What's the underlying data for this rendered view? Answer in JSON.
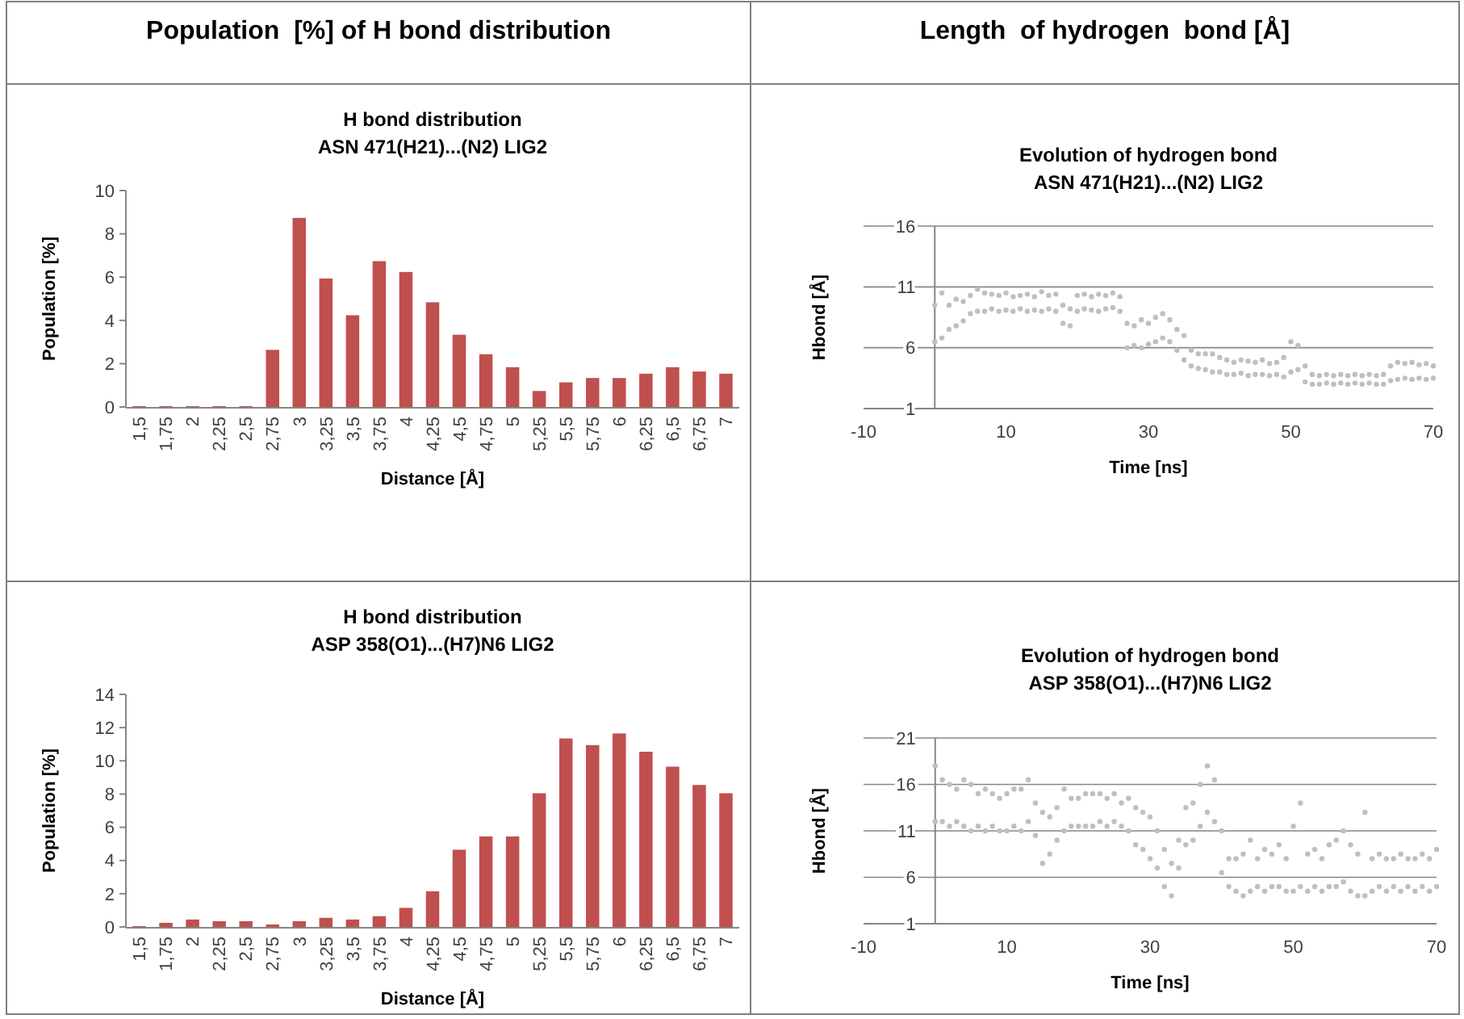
{
  "chart_data": [
    {
      "type": "bar",
      "title": "H bond distribution",
      "subtitle": "ASN 471(H21)...(N2) LIG2",
      "xlabel": "Distance [Å]",
      "ylabel": "Population [%]",
      "annotations": [
        "Population  [%] of H bond distribution"
      ],
      "categories": [
        "1,5",
        "1,75",
        "2",
        "2,25",
        "2,5",
        "2,75",
        "3",
        "3,25",
        "3,5",
        "3,75",
        "4",
        "4,25",
        "4,5",
        "4,75",
        "5",
        "5,25",
        "5,5",
        "5,75",
        "6",
        "6,25",
        "6,5",
        "6,75",
        "7"
      ],
      "values": [
        0,
        0,
        0,
        0,
        0,
        2.6,
        8.7,
        5.9,
        4.2,
        6.7,
        6.2,
        4.8,
        3.3,
        2.4,
        1.8,
        0.7,
        1.1,
        1.3,
        1.3,
        1.5,
        1.8,
        1.6,
        1.5
      ],
      "color": "#c0504d",
      "ylim": [
        0,
        10
      ],
      "yticks": [
        0,
        2,
        4,
        6,
        8,
        10
      ],
      "grid": false
    },
    {
      "type": "scatter",
      "title": "Evolution of hydrogen bond",
      "subtitle": "ASN 471(H21)...(N2) LIG2",
      "xlabel": "Time [ns]",
      "ylabel": "Hbond [Å]",
      "annotations": [
        "Length  of hydrogen  bond [Å]"
      ],
      "marker": "circle",
      "grid": "y",
      "xlim": [
        -10,
        70
      ],
      "xticks": [
        -10,
        10,
        30,
        50,
        70
      ],
      "ylim": [
        1,
        16
      ],
      "yticks": [
        1,
        6,
        11,
        16
      ],
      "series": [
        {
          "color": "#bfbfbf",
          "x": [
            0,
            1,
            2,
            3,
            4,
            5,
            6,
            7,
            8,
            9,
            10,
            11,
            12,
            13,
            14,
            15,
            16,
            17,
            18,
            19,
            20,
            21,
            22,
            23,
            24,
            25,
            26,
            27,
            28,
            29,
            30,
            31,
            32,
            33,
            34,
            35,
            36,
            37,
            38,
            39,
            40,
            41,
            42,
            43,
            44,
            45,
            46,
            47,
            48,
            49,
            50,
            51,
            52,
            53,
            54,
            55,
            56,
            57,
            58,
            59,
            60,
            61,
            62,
            63,
            64,
            65,
            66,
            67,
            68,
            69,
            70
          ],
          "values": [
            6.5,
            6.8,
            7.5,
            7.8,
            8.2,
            8.8,
            9,
            9,
            9.2,
            9,
            9.1,
            9,
            9.2,
            9,
            9.1,
            9,
            9.2,
            9,
            8,
            7.8,
            9,
            9.2,
            9.1,
            9,
            9.2,
            9.3,
            9,
            6,
            6.2,
            6,
            6.3,
            6.5,
            6.8,
            6.5,
            5.8,
            5,
            4.5,
            4.3,
            4.2,
            4,
            4,
            3.8,
            3.8,
            3.9,
            3.7,
            3.8,
            3.8,
            3.7,
            3.8,
            3.6,
            4,
            4.2,
            3.2,
            3,
            3,
            3.1,
            3,
            3.1,
            3,
            3.1,
            3,
            3.1,
            3,
            3,
            3.3,
            3.4,
            3.5,
            3.4,
            3.5,
            3.4,
            3.5
          ]
        },
        {
          "color": "#bfbfbf",
          "x": [
            0,
            1,
            2,
            3,
            4,
            5,
            6,
            7,
            8,
            9,
            10,
            11,
            12,
            13,
            14,
            15,
            16,
            17,
            18,
            19,
            20,
            21,
            22,
            23,
            24,
            25,
            26,
            27,
            28,
            29,
            30,
            31,
            32,
            33,
            34,
            35,
            36,
            37,
            38,
            39,
            40,
            41,
            42,
            43,
            44,
            45,
            46,
            47,
            48,
            49,
            50,
            51,
            52,
            53,
            54,
            55,
            56,
            57,
            58,
            59,
            60,
            61,
            62,
            63,
            64,
            65,
            66,
            67,
            68,
            69,
            70
          ],
          "values": [
            9.5,
            10.5,
            9.5,
            10,
            9.8,
            10.3,
            10.8,
            10.5,
            10.4,
            10.3,
            10.5,
            10.2,
            10.3,
            10.4,
            10.2,
            10.6,
            10.3,
            10.4,
            9.5,
            9.2,
            10.3,
            10.4,
            10.2,
            10.4,
            10.3,
            10.5,
            10.2,
            8,
            7.8,
            8.3,
            8,
            8.5,
            8.8,
            8.3,
            7.5,
            7,
            5.8,
            5.5,
            5.5,
            5.5,
            5.2,
            5,
            4.8,
            5,
            4.9,
            4.8,
            5,
            4.7,
            4.8,
            5.2,
            6.5,
            6.2,
            4.5,
            3.8,
            3.7,
            3.8,
            3.7,
            3.8,
            3.7,
            3.8,
            3.7,
            3.8,
            3.7,
            3.8,
            4.5,
            4.8,
            4.7,
            4.8,
            4.6,
            4.7,
            4.5
          ]
        }
      ]
    },
    {
      "type": "bar",
      "title": "H bond distribution",
      "subtitle": "ASP 358(O1)...(H7)N6 LIG2",
      "xlabel": "Distance [Å]",
      "ylabel": "Population [%]",
      "categories": [
        "1,5",
        "1,75",
        "2",
        "2,25",
        "2,5",
        "2,75",
        "3",
        "3,25",
        "3,5",
        "3,75",
        "4",
        "4,25",
        "4,5",
        "4,75",
        "5",
        "5,25",
        "5,5",
        "5,75",
        "6",
        "6,25",
        "6,5",
        "6,75",
        "7"
      ],
      "values": [
        0,
        0.2,
        0.4,
        0.3,
        0.3,
        0.1,
        0.3,
        0.5,
        0.4,
        0.6,
        1.1,
        2.1,
        4.6,
        5.4,
        5.4,
        8.0,
        11.3,
        10.9,
        11.6,
        10.5,
        9.6,
        8.5,
        8.0
      ],
      "color": "#c0504d",
      "ylim": [
        0,
        14
      ],
      "yticks": [
        0,
        2,
        4,
        6,
        8,
        10,
        12,
        14
      ],
      "grid": false
    },
    {
      "type": "scatter",
      "title": "Evolution of hydrogen bond",
      "subtitle": "ASP 358(O1)...(H7)N6 LIG2",
      "xlabel": "Time [ns]",
      "ylabel": "Hbond [Å]",
      "marker": "circle",
      "grid": "y",
      "xlim": [
        -10,
        70
      ],
      "xticks": [
        -10,
        10,
        30,
        50,
        70
      ],
      "ylim": [
        1,
        21
      ],
      "yticks": [
        1,
        6,
        11,
        16,
        21
      ],
      "series": [
        {
          "color": "#bfbfbf",
          "x": [
            0,
            1,
            2,
            3,
            4,
            5,
            6,
            7,
            8,
            9,
            10,
            11,
            12,
            13,
            14,
            15,
            16,
            17,
            18,
            19,
            20,
            21,
            22,
            23,
            24,
            25,
            26,
            27,
            28,
            29,
            30,
            31,
            32,
            33,
            34,
            35,
            36,
            37,
            38,
            39,
            40,
            41,
            42,
            43,
            44,
            45,
            46,
            47,
            48,
            49,
            50,
            51,
            52,
            53,
            54,
            55,
            56,
            57,
            58,
            59,
            60,
            61,
            62,
            63,
            64,
            65,
            66,
            67,
            68,
            69,
            70
          ],
          "values": [
            12,
            12,
            11.5,
            12,
            11.5,
            11,
            11.5,
            11,
            11.5,
            11,
            11,
            11.5,
            11,
            12,
            10.5,
            7.5,
            8.5,
            10,
            11,
            11.5,
            11.5,
            11.5,
            11.5,
            12,
            11.5,
            12,
            11.5,
            11,
            9.5,
            9,
            8,
            7,
            5,
            4,
            7,
            9.5,
            10,
            11.5,
            13,
            12,
            6.5,
            5,
            4.5,
            4,
            4.5,
            5,
            4.5,
            5,
            5,
            4.5,
            4.5,
            5,
            4.5,
            5,
            4.5,
            5,
            5,
            5.5,
            4.5,
            4,
            4,
            4.5,
            5,
            4.5,
            5,
            4.5,
            5,
            4.5,
            5,
            4.5,
            5
          ]
        },
        {
          "color": "#bfbfbf",
          "x": [
            0,
            1,
            2,
            3,
            4,
            5,
            6,
            7,
            8,
            9,
            10,
            11,
            12,
            13,
            14,
            15,
            16,
            17,
            18,
            19,
            20,
            21,
            22,
            23,
            24,
            25,
            26,
            27,
            28,
            29,
            30,
            31,
            32,
            33,
            34,
            35,
            36,
            37,
            38,
            39,
            40,
            41,
            42,
            43,
            44,
            45,
            46,
            47,
            48,
            49,
            50,
            51,
            52,
            53,
            54,
            55,
            56,
            57,
            58,
            59,
            60,
            61,
            62,
            63,
            64,
            65,
            66,
            67,
            68,
            69,
            70
          ],
          "values": [
            18,
            16.5,
            16,
            15.5,
            16.5,
            16,
            15,
            15.5,
            15,
            14.5,
            15,
            15.5,
            15.5,
            16.5,
            14,
            13,
            12.5,
            13.5,
            15.5,
            14.5,
            14.5,
            15,
            15,
            15,
            14.5,
            15,
            14,
            14.5,
            13.5,
            13,
            12.5,
            11,
            9,
            7.5,
            10,
            13.5,
            14,
            16,
            18,
            16.5,
            11,
            8,
            8,
            8.5,
            10,
            8,
            9,
            8.5,
            9.5,
            8,
            11.5,
            14,
            8.5,
            9,
            8,
            9.5,
            10,
            11,
            9.5,
            8.5,
            13,
            8,
            8.5,
            8,
            8,
            8.5,
            8,
            8,
            8.5,
            8,
            9
          ]
        }
      ]
    }
  ]
}
